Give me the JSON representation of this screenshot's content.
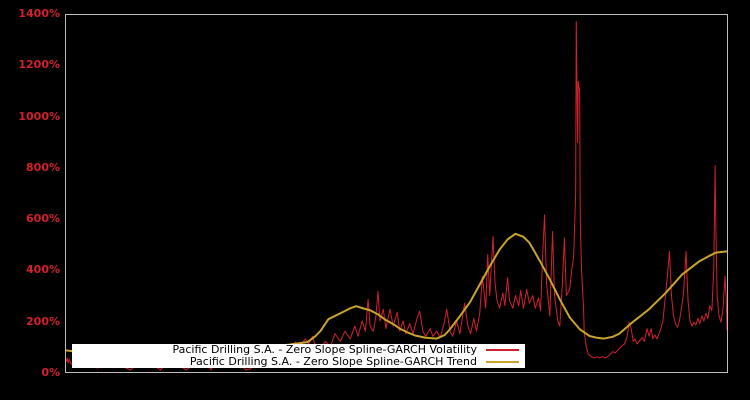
{
  "figure": {
    "background": "#000000",
    "plot_border_color": "#bdbdbd",
    "volatility_color": "#d2202e",
    "trend_color": "#c9a42d",
    "legend_background": "#ffffff",
    "legend_text_color": "#000000"
  },
  "legend": {
    "entries": [
      {
        "label": "Pacific Drilling S.A. - Zero Slope Spline-GARCH Volatility",
        "color": "#d2202e"
      },
      {
        "label": "Pacific Drilling S.A. - Zero Slope Spline-GARCH Trend",
        "color": "#c9a42d"
      }
    ]
  },
  "chart_data": {
    "type": "line",
    "title": "",
    "xlabel": "",
    "ylabel": "",
    "grid": false,
    "legend_position": "bottom-left",
    "x_axis": {
      "tick_labels_visible": false,
      "note": "x expressed as percent of axis width (time axis unlabeled in figure)"
    },
    "y_axis": {
      "unit": "%",
      "min": 0,
      "max": 1400,
      "tick_values": [
        0,
        200,
        400,
        600,
        800,
        1000,
        1200,
        1400
      ],
      "tick_labels": [
        "0%",
        "200%",
        "400%",
        "600%",
        "800%",
        "1000%",
        "1200%",
        "1400%"
      ],
      "label_color": "#d2202e"
    },
    "series": [
      {
        "name": "Pacific Drilling S.A. - Zero Slope Spline-GARCH Volatility",
        "data_name": "volatility-line",
        "color": "#d2202e",
        "width": 1,
        "points": [
          [
            0,
            40
          ],
          [
            0.2,
            55
          ],
          [
            0.3,
            35
          ],
          [
            0.5,
            50
          ],
          [
            0.8,
            30
          ],
          [
            1.1,
            25
          ],
          [
            1.5,
            30
          ],
          [
            2.3,
            55
          ],
          [
            3,
            25
          ],
          [
            3.8,
            45
          ],
          [
            4.5,
            20
          ],
          [
            4.8,
            15
          ],
          [
            5.3,
            60
          ],
          [
            6,
            30
          ],
          [
            6.8,
            50
          ],
          [
            7.5,
            25
          ],
          [
            8.3,
            40
          ],
          [
            9.1,
            15
          ],
          [
            9.8,
            8
          ],
          [
            10.6,
            30
          ],
          [
            11.3,
            55
          ],
          [
            12.1,
            35
          ],
          [
            12.8,
            45
          ],
          [
            13.6,
            20
          ],
          [
            14.3,
            8
          ],
          [
            15.1,
            35
          ],
          [
            15.8,
            60
          ],
          [
            16.6,
            40
          ],
          [
            17.3,
            25
          ],
          [
            18.1,
            8
          ],
          [
            18.9,
            20
          ],
          [
            19.6,
            45
          ],
          [
            20.4,
            30
          ],
          [
            21.1,
            50
          ],
          [
            21.9,
            8
          ],
          [
            22.6,
            35
          ],
          [
            23.4,
            55
          ],
          [
            24.1,
            40
          ],
          [
            24.9,
            60
          ],
          [
            25.6,
            45
          ],
          [
            26.4,
            30
          ],
          [
            27.2,
            8
          ],
          [
            27.9,
            12
          ],
          [
            28.7,
            40
          ],
          [
            29.4,
            70
          ],
          [
            30.2,
            55
          ],
          [
            30.9,
            75
          ],
          [
            31.7,
            60
          ],
          [
            32.4,
            80
          ],
          [
            33.2,
            75
          ],
          [
            33.9,
            90
          ],
          [
            34.7,
            117
          ],
          [
            35.4,
            100
          ],
          [
            36.2,
            130
          ],
          [
            36.7,
            110
          ],
          [
            37.3,
            140
          ],
          [
            37.7,
            100
          ],
          [
            38.5,
            90
          ],
          [
            39.2,
            120
          ],
          [
            40,
            100
          ],
          [
            40.7,
            150
          ],
          [
            41.5,
            120
          ],
          [
            42.2,
            160
          ],
          [
            43,
            130
          ],
          [
            43.7,
            180
          ],
          [
            44.2,
            140
          ],
          [
            44.8,
            200
          ],
          [
            45.3,
            160
          ],
          [
            45.7,
            285
          ],
          [
            46,
            180
          ],
          [
            46.5,
            160
          ],
          [
            46.9,
            220
          ],
          [
            47.2,
            317
          ],
          [
            47.5,
            200
          ],
          [
            48,
            246
          ],
          [
            48.4,
            170
          ],
          [
            49,
            246
          ],
          [
            49.5,
            180
          ],
          [
            50.1,
            234
          ],
          [
            50.5,
            160
          ],
          [
            51,
            200
          ],
          [
            51.4,
            150
          ],
          [
            52,
            190
          ],
          [
            52.5,
            150
          ],
          [
            53.1,
            210
          ],
          [
            53.5,
            239
          ],
          [
            54,
            160
          ],
          [
            54.4,
            140
          ],
          [
            55.1,
            170
          ],
          [
            55.5,
            140
          ],
          [
            56.1,
            160
          ],
          [
            56.6,
            135
          ],
          [
            57.2,
            190
          ],
          [
            57.6,
            246
          ],
          [
            58.1,
            160
          ],
          [
            58.5,
            140
          ],
          [
            59.1,
            200
          ],
          [
            59.6,
            150
          ],
          [
            60,
            220
          ],
          [
            60.3,
            270
          ],
          [
            60.8,
            180
          ],
          [
            61.2,
            150
          ],
          [
            61.7,
            210
          ],
          [
            62.1,
            160
          ],
          [
            62.6,
            230
          ],
          [
            63,
            375
          ],
          [
            63.5,
            250
          ],
          [
            63.8,
            460
          ],
          [
            64.1,
            300
          ],
          [
            64.6,
            531
          ],
          [
            64.9,
            350
          ],
          [
            65.2,
            280
          ],
          [
            65.6,
            250
          ],
          [
            66.1,
            310
          ],
          [
            66.4,
            260
          ],
          [
            66.8,
            370
          ],
          [
            67.1,
            280
          ],
          [
            67.6,
            250
          ],
          [
            68,
            300
          ],
          [
            68.5,
            260
          ],
          [
            68.8,
            320
          ],
          [
            69.2,
            250
          ],
          [
            69.7,
            324
          ],
          [
            70.1,
            270
          ],
          [
            70.6,
            300
          ],
          [
            71,
            250
          ],
          [
            71.5,
            290
          ],
          [
            71.8,
            240
          ],
          [
            72.1,
            450
          ],
          [
            72.4,
            616
          ],
          [
            72.7,
            350
          ],
          [
            73.2,
            220
          ],
          [
            73.6,
            551
          ],
          [
            73.9,
            300
          ],
          [
            74.4,
            200
          ],
          [
            74.7,
            180
          ],
          [
            75.1,
            350
          ],
          [
            75.4,
            526
          ],
          [
            75.7,
            300
          ],
          [
            76.2,
            324
          ],
          [
            76.5,
            400
          ],
          [
            76.8,
            452
          ],
          [
            77.1,
            700
          ],
          [
            77.2,
            1375
          ],
          [
            77.4,
            900
          ],
          [
            77.5,
            1140
          ],
          [
            77.7,
            1100
          ],
          [
            77.8,
            600
          ],
          [
            78,
            400
          ],
          [
            78.3,
            250
          ],
          [
            78.4,
            156
          ],
          [
            78.7,
            100
          ],
          [
            79,
            70
          ],
          [
            79.5,
            60
          ],
          [
            79.9,
            55
          ],
          [
            80.4,
            60
          ],
          [
            80.7,
            55
          ],
          [
            81.1,
            60
          ],
          [
            81.6,
            55
          ],
          [
            82.2,
            65
          ],
          [
            82.7,
            80
          ],
          [
            83.1,
            75
          ],
          [
            83.6,
            90
          ],
          [
            84,
            100
          ],
          [
            84.5,
            110
          ],
          [
            84.9,
            140
          ],
          [
            85.2,
            196
          ],
          [
            85.5,
            170
          ],
          [
            85.8,
            120
          ],
          [
            86.1,
            130
          ],
          [
            86.4,
            110
          ],
          [
            86.7,
            120
          ],
          [
            87.2,
            135
          ],
          [
            87.5,
            120
          ],
          [
            87.9,
            170
          ],
          [
            88.2,
            140
          ],
          [
            88.5,
            170
          ],
          [
            88.8,
            130
          ],
          [
            89.1,
            145
          ],
          [
            89.4,
            130
          ],
          [
            89.7,
            150
          ],
          [
            90,
            170
          ],
          [
            90.3,
            200
          ],
          [
            90.7,
            300
          ],
          [
            91,
            380
          ],
          [
            91.3,
            473
          ],
          [
            91.6,
            300
          ],
          [
            91.9,
            220
          ],
          [
            92.2,
            190
          ],
          [
            92.5,
            175
          ],
          [
            92.8,
            200
          ],
          [
            93.1,
            250
          ],
          [
            93.4,
            300
          ],
          [
            93.8,
            473
          ],
          [
            94.1,
            280
          ],
          [
            94.4,
            200
          ],
          [
            94.7,
            180
          ],
          [
            95,
            195
          ],
          [
            95.3,
            185
          ],
          [
            95.6,
            210
          ],
          [
            95.9,
            190
          ],
          [
            96.2,
            220
          ],
          [
            96.5,
            200
          ],
          [
            96.8,
            230
          ],
          [
            97.1,
            210
          ],
          [
            97.4,
            260
          ],
          [
            97.7,
            240
          ],
          [
            98,
            400
          ],
          [
            98.2,
            810
          ],
          [
            98.3,
            600
          ],
          [
            98.5,
            300
          ],
          [
            98.8,
            220
          ],
          [
            99.1,
            195
          ],
          [
            99.4,
            250
          ],
          [
            99.7,
            375
          ],
          [
            99.9,
            280
          ],
          [
            100,
            165
          ]
        ]
      },
      {
        "name": "Pacific Drilling S.A. - Zero Slope Spline-GARCH Trend",
        "data_name": "trend-line",
        "color": "#c9a42d",
        "width": 2,
        "points": [
          [
            0,
            85
          ],
          [
            1.5,
            80
          ],
          [
            3.8,
            72
          ],
          [
            6.8,
            64
          ],
          [
            9.8,
            60
          ],
          [
            12.8,
            58
          ],
          [
            15.8,
            60
          ],
          [
            18.9,
            64
          ],
          [
            21.9,
            70
          ],
          [
            24.9,
            78
          ],
          [
            27.9,
            88
          ],
          [
            30.9,
            98
          ],
          [
            33.9,
            108
          ],
          [
            35.4,
            113
          ],
          [
            36.5,
            117
          ],
          [
            37.7,
            140
          ],
          [
            38.5,
            161
          ],
          [
            39.7,
            207
          ],
          [
            41.9,
            235
          ],
          [
            43,
            250
          ],
          [
            43.9,
            258
          ],
          [
            44.9,
            250
          ],
          [
            46,
            242
          ],
          [
            47.2,
            226
          ],
          [
            48.3,
            205
          ],
          [
            49.5,
            188
          ],
          [
            50.5,
            170
          ],
          [
            51.7,
            155
          ],
          [
            52.8,
            143
          ],
          [
            54.3,
            135
          ],
          [
            56.1,
            131
          ],
          [
            57.3,
            145
          ],
          [
            58.1,
            168
          ],
          [
            59.6,
            219
          ],
          [
            61.1,
            273
          ],
          [
            62.6,
            343
          ],
          [
            64.1,
            414
          ],
          [
            65.6,
            480
          ],
          [
            66.8,
            520
          ],
          [
            68,
            542
          ],
          [
            69.2,
            530
          ],
          [
            70.1,
            507
          ],
          [
            71.6,
            440
          ],
          [
            73.2,
            363
          ],
          [
            74.7,
            285
          ],
          [
            76.2,
            214
          ],
          [
            77.7,
            168
          ],
          [
            79.2,
            141
          ],
          [
            80.2,
            135
          ],
          [
            81.4,
            131
          ],
          [
            82.7,
            138
          ],
          [
            83.7,
            150
          ],
          [
            85.7,
            195
          ],
          [
            88.2,
            246
          ],
          [
            90.8,
            312
          ],
          [
            93.2,
            382
          ],
          [
            95.8,
            434
          ],
          [
            97.3,
            455
          ],
          [
            98.3,
            468
          ],
          [
            100,
            473
          ]
        ]
      }
    ]
  }
}
